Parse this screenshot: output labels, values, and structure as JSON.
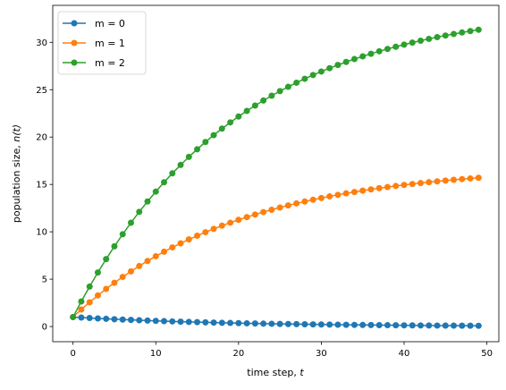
{
  "chart_data": {
    "type": "line",
    "xlabel_text": "time step, ",
    "xlabel_var": "t",
    "ylabel_text": "population size, ",
    "ylabel_var": "n(t)",
    "xlim": [
      -2.45,
      51.45
    ],
    "ylim": [
      -1.6,
      33.9
    ],
    "xticks": [
      0,
      10,
      20,
      30,
      40,
      50
    ],
    "yticks": [
      0,
      5,
      10,
      15,
      20,
      25,
      30
    ],
    "legend_position": "upper-left",
    "series": [
      {
        "name": "m = 0",
        "color": "#1f77b4",
        "model": {
          "start": 1,
          "factor": 0.95,
          "add": 0
        }
      },
      {
        "name": "m = 1",
        "color": "#ff7f0e",
        "model": {
          "start": 1,
          "factor": 0.95,
          "add": 0.85
        }
      },
      {
        "name": "m = 2",
        "color": "#2ca02c",
        "model": {
          "start": 1,
          "factor": 0.95,
          "add": 1.7
        }
      }
    ],
    "x_count": 50
  }
}
